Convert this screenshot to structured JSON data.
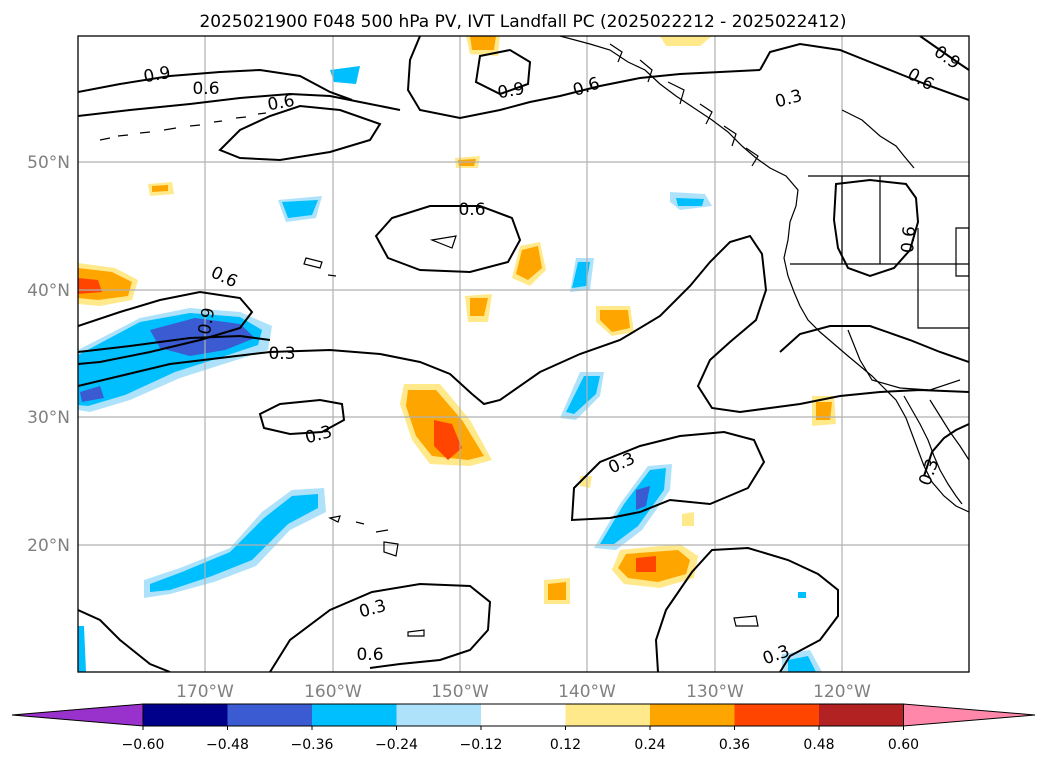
{
  "title": "2025021900 F048 500 hPa PV, IVT Landfall PC (2025022212 - 2025022412)",
  "lat_labels": [
    "50°N",
    "40°N",
    "30°N",
    "20°N"
  ],
  "lon_labels": [
    "170°W",
    "160°W",
    "150°W",
    "140°W",
    "130°W",
    "120°W"
  ],
  "colorbar": {
    "ticks": [
      "−0.60",
      "−0.48",
      "−0.36",
      "−0.24",
      "−0.12",
      "0.12",
      "0.24",
      "0.36",
      "0.48",
      "0.60"
    ],
    "colors": [
      "#9932cc",
      "#00008b",
      "#3a5bd1",
      "#00bfff",
      "#ade2fa",
      "#ffffff",
      "#ffe98a",
      "#ffa500",
      "#ff4500",
      "#b22222",
      "#ff88aa"
    ]
  },
  "contour_labels": {
    "c1": "0.9",
    "c2": "0.6",
    "c3": "0.6",
    "c4": "0.9",
    "c5": "0.6",
    "c6": "0.9",
    "c7": "0.6",
    "c8": "0.3",
    "c9": "0.6",
    "c10": "0.6",
    "c11": "0.9",
    "c12": "0.3",
    "c13": "0.3",
    "c14": "0.3",
    "c15": "0.6",
    "c16": "0.6",
    "c17": "0.3",
    "c18": "0.3",
    "c19": "0.3"
  }
}
